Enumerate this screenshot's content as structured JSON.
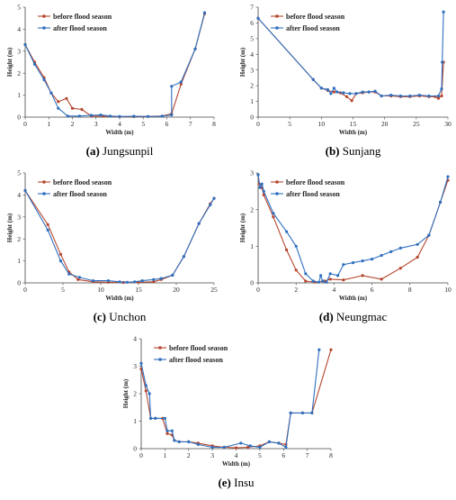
{
  "colors": {
    "before": "#b5462e",
    "after": "#2f6fbf"
  },
  "chart_data": [
    {
      "id": "jungsunpil",
      "type": "line",
      "caption_letter": "(a)",
      "caption_name": " Jungsunpil",
      "xlabel": "Width (m)",
      "ylabel": "Height (m)",
      "xlim": [
        0,
        8
      ],
      "ylim": [
        0,
        5
      ],
      "xticks": [
        0,
        1,
        2,
        3,
        4,
        5,
        6,
        7,
        8
      ],
      "yticks": [
        0,
        1,
        2,
        3,
        4,
        5
      ],
      "legend": "top-left",
      "grid": false,
      "series": [
        {
          "name": "before flood season",
          "key": "before",
          "points": [
            [
              0,
              3.3
            ],
            [
              0.4,
              2.5
            ],
            [
              0.8,
              1.8
            ],
            [
              1.1,
              1.1
            ],
            [
              1.4,
              0.7
            ],
            [
              1.75,
              0.85
            ],
            [
              2.0,
              0.4
            ],
            [
              2.4,
              0.35
            ],
            [
              2.8,
              0.05
            ],
            [
              3.3,
              0.05
            ],
            [
              4.0,
              0.02
            ],
            [
              4.6,
              0.02
            ],
            [
              5.2,
              0.03
            ],
            [
              5.8,
              0.05
            ],
            [
              6.2,
              0.15
            ],
            [
              6.6,
              1.5
            ],
            [
              7.2,
              3.1
            ],
            [
              7.6,
              4.7
            ]
          ]
        },
        {
          "name": "after flood season",
          "key": "after",
          "points": [
            [
              0,
              3.3
            ],
            [
              0.4,
              2.4
            ],
            [
              0.8,
              1.7
            ],
            [
              1.1,
              1.1
            ],
            [
              1.4,
              0.4
            ],
            [
              1.8,
              0.05
            ],
            [
              2.3,
              0.05
            ],
            [
              2.8,
              0.08
            ],
            [
              3.2,
              0.1
            ],
            [
              3.6,
              0.05
            ],
            [
              4.0,
              0.03
            ],
            [
              4.6,
              0.04
            ],
            [
              5.2,
              0.03
            ],
            [
              5.8,
              0.04
            ],
            [
              6.2,
              0.1
            ],
            [
              6.2,
              1.4
            ],
            [
              6.6,
              1.6
            ],
            [
              7.2,
              3.1
            ],
            [
              7.6,
              4.75
            ]
          ]
        }
      ]
    },
    {
      "id": "sunjang",
      "type": "line",
      "caption_letter": "(b)",
      "caption_name": " Sunjang",
      "xlabel": "Width (m)",
      "ylabel": "Height (m)",
      "xlim": [
        0,
        30
      ],
      "ylim": [
        0,
        7
      ],
      "xticks": [
        0,
        5,
        10,
        15,
        20,
        25,
        30
      ],
      "yticks": [
        0,
        1,
        2,
        3,
        4,
        5,
        6,
        7
      ],
      "legend": "top-left",
      "grid": false,
      "series": [
        {
          "name": "before flood season",
          "key": "before",
          "points": [
            [
              0,
              6.3
            ],
            [
              8.7,
              2.4
            ],
            [
              10,
              1.85
            ],
            [
              11,
              1.7
            ],
            [
              12,
              1.6
            ],
            [
              13,
              1.55
            ],
            [
              14,
              1.3
            ],
            [
              14.8,
              1.05
            ],
            [
              15.5,
              1.5
            ],
            [
              16.5,
              1.55
            ],
            [
              17.5,
              1.6
            ],
            [
              18.5,
              1.6
            ],
            [
              19.5,
              1.35
            ],
            [
              21,
              1.35
            ],
            [
              22.5,
              1.3
            ],
            [
              24,
              1.3
            ],
            [
              25.5,
              1.35
            ],
            [
              27,
              1.3
            ],
            [
              28,
              1.3
            ],
            [
              28.5,
              1.2
            ],
            [
              29,
              1.35
            ],
            [
              29.3,
              3.5
            ]
          ]
        },
        {
          "name": "after flood season",
          "key": "after",
          "points": [
            [
              0,
              6.3
            ],
            [
              8.7,
              2.4
            ],
            [
              10,
              1.85
            ],
            [
              11,
              1.75
            ],
            [
              11.5,
              1.5
            ],
            [
              12,
              1.85
            ],
            [
              12.5,
              1.6
            ],
            [
              13.5,
              1.55
            ],
            [
              14.5,
              1.5
            ],
            [
              15.5,
              1.5
            ],
            [
              16.5,
              1.6
            ],
            [
              17.5,
              1.6
            ],
            [
              18.5,
              1.65
            ],
            [
              19.5,
              1.35
            ],
            [
              21,
              1.4
            ],
            [
              22.5,
              1.35
            ],
            [
              24,
              1.35
            ],
            [
              25.5,
              1.4
            ],
            [
              27,
              1.35
            ],
            [
              28.5,
              1.35
            ],
            [
              29,
              1.8
            ],
            [
              29.1,
              3.5
            ],
            [
              29.3,
              6.7
            ]
          ]
        }
      ]
    },
    {
      "id": "unchon",
      "type": "line",
      "caption_letter": "(c)",
      "caption_name": " Unchon",
      "xlabel": "Width (m)",
      "ylabel": "Height (m)",
      "xlim": [
        0,
        25
      ],
      "ylim": [
        0,
        5
      ],
      "xticks": [
        0,
        5,
        10,
        15,
        20,
        25
      ],
      "yticks": [
        0,
        1,
        2,
        3,
        4,
        5
      ],
      "legend": "top-left",
      "grid": false,
      "series": [
        {
          "name": "before flood season",
          "key": "before",
          "points": [
            [
              0,
              4.2
            ],
            [
              3,
              2.65
            ],
            [
              4.7,
              1.3
            ],
            [
              5.8,
              0.5
            ],
            [
              7,
              0.15
            ],
            [
              9,
              0.05
            ],
            [
              11,
              0.03
            ],
            [
              13,
              0.02
            ],
            [
              15,
              0.03
            ],
            [
              17,
              0.05
            ],
            [
              18,
              0.15
            ],
            [
              19.5,
              0.35
            ],
            [
              21,
              1.2
            ],
            [
              23,
              2.7
            ],
            [
              24.5,
              3.6
            ],
            [
              25,
              3.85
            ]
          ]
        },
        {
          "name": "after flood season",
          "key": "after",
          "points": [
            [
              0,
              4.2
            ],
            [
              3,
              2.4
            ],
            [
              4.7,
              1.0
            ],
            [
              5.8,
              0.4
            ],
            [
              7.2,
              0.25
            ],
            [
              9,
              0.1
            ],
            [
              11,
              0.1
            ],
            [
              12.5,
              0.05
            ],
            [
              13.5,
              0.03
            ],
            [
              14.5,
              0.05
            ],
            [
              15.5,
              0.1
            ],
            [
              17,
              0.15
            ],
            [
              18,
              0.2
            ],
            [
              19.5,
              0.35
            ],
            [
              21,
              1.2
            ],
            [
              23,
              2.7
            ],
            [
              24.5,
              3.55
            ],
            [
              25,
              3.85
            ]
          ]
        }
      ]
    },
    {
      "id": "neungmac",
      "type": "line",
      "caption_letter": "(d)",
      "caption_name": " Neungmac",
      "xlabel": "Width (m)",
      "ylabel": "Height (m)",
      "xlim": [
        0,
        10
      ],
      "ylim": [
        0,
        3
      ],
      "xticks": [
        0,
        2,
        4,
        6,
        8,
        10
      ],
      "yticks": [
        0,
        1,
        2,
        3
      ],
      "legend": "top-left",
      "grid": false,
      "series": [
        {
          "name": "before flood season",
          "key": "before",
          "points": [
            [
              0,
              2.95
            ],
            [
              0.05,
              2.7
            ],
            [
              0.2,
              2.6
            ],
            [
              0.3,
              2.4
            ],
            [
              0.8,
              1.8
            ],
            [
              1.5,
              0.9
            ],
            [
              2,
              0.35
            ],
            [
              2.5,
              0.05
            ],
            [
              3,
              0.02
            ],
            [
              3.5,
              0.05
            ],
            [
              3.8,
              0.1
            ],
            [
              4.5,
              0.08
            ],
            [
              5.5,
              0.2
            ],
            [
              6.5,
              0.1
            ],
            [
              7.5,
              0.4
            ],
            [
              8.4,
              0.7
            ],
            [
              9,
              1.3
            ],
            [
              9.6,
              2.2
            ],
            [
              10,
              2.8
            ]
          ]
        },
        {
          "name": "after flood season",
          "key": "after",
          "points": [
            [
              0,
              2.95
            ],
            [
              0.1,
              2.6
            ],
            [
              0.2,
              2.7
            ],
            [
              0.3,
              2.5
            ],
            [
              0.8,
              1.9
            ],
            [
              1.5,
              1.4
            ],
            [
              2,
              1.0
            ],
            [
              2.5,
              0.25
            ],
            [
              2.9,
              0.05
            ],
            [
              3.2,
              0.02
            ],
            [
              3.3,
              0.2
            ],
            [
              3.4,
              0.05
            ],
            [
              3.6,
              0.02
            ],
            [
              3.8,
              0.25
            ],
            [
              4.2,
              0.2
            ],
            [
              4.5,
              0.5
            ],
            [
              5,
              0.55
            ],
            [
              5.5,
              0.6
            ],
            [
              6,
              0.65
            ],
            [
              6.5,
              0.75
            ],
            [
              7,
              0.85
            ],
            [
              7.5,
              0.95
            ],
            [
              8.4,
              1.05
            ],
            [
              9,
              1.3
            ],
            [
              9.6,
              2.2
            ],
            [
              10,
              2.9
            ]
          ]
        }
      ]
    },
    {
      "id": "insu",
      "type": "line",
      "caption_letter": "(e)",
      "caption_name": " Insu",
      "xlabel": "Width (m)",
      "ylabel": "Height (m)",
      "xlim": [
        0,
        8
      ],
      "ylim": [
        0,
        4
      ],
      "xticks": [
        0,
        1,
        2,
        3,
        4,
        5,
        6,
        7,
        8
      ],
      "yticks": [
        0,
        1,
        2,
        3,
        4
      ],
      "legend": "top-left",
      "grid": false,
      "series": [
        {
          "name": "before flood season",
          "key": "before",
          "points": [
            [
              0,
              2.9
            ],
            [
              0.2,
              2.1
            ],
            [
              0.4,
              1.1
            ],
            [
              0.6,
              1.1
            ],
            [
              0.9,
              1.1
            ],
            [
              1.1,
              0.55
            ],
            [
              1.3,
              0.5
            ],
            [
              1.4,
              0.3
            ],
            [
              1.6,
              0.25
            ],
            [
              2.0,
              0.25
            ],
            [
              2.4,
              0.2
            ],
            [
              3.0,
              0.1
            ],
            [
              3.5,
              0.05
            ],
            [
              4.0,
              0.03
            ],
            [
              4.5,
              0.05
            ],
            [
              5.0,
              0.1
            ],
            [
              5.4,
              0.25
            ],
            [
              5.8,
              0.2
            ],
            [
              6.1,
              0.15
            ],
            [
              6.3,
              1.3
            ],
            [
              6.8,
              1.3
            ],
            [
              7.2,
              1.3
            ],
            [
              8.0,
              3.6
            ]
          ]
        },
        {
          "name": "after flood season",
          "key": "after",
          "points": [
            [
              0,
              3.1
            ],
            [
              0.2,
              2.3
            ],
            [
              0.35,
              2.0
            ],
            [
              0.4,
              1.1
            ],
            [
              0.6,
              1.1
            ],
            [
              1.0,
              1.1
            ],
            [
              1.1,
              0.65
            ],
            [
              1.3,
              0.65
            ],
            [
              1.4,
              0.3
            ],
            [
              1.6,
              0.25
            ],
            [
              2.0,
              0.25
            ],
            [
              2.4,
              0.15
            ],
            [
              3.0,
              0.05
            ],
            [
              3.5,
              0.05
            ],
            [
              4.2,
              0.2
            ],
            [
              4.6,
              0.1
            ],
            [
              5.0,
              0.05
            ],
            [
              5.4,
              0.25
            ],
            [
              5.8,
              0.2
            ],
            [
              6.1,
              0.05
            ],
            [
              6.3,
              1.3
            ],
            [
              6.8,
              1.3
            ],
            [
              7.2,
              1.3
            ],
            [
              7.5,
              3.6
            ]
          ]
        }
      ]
    }
  ]
}
